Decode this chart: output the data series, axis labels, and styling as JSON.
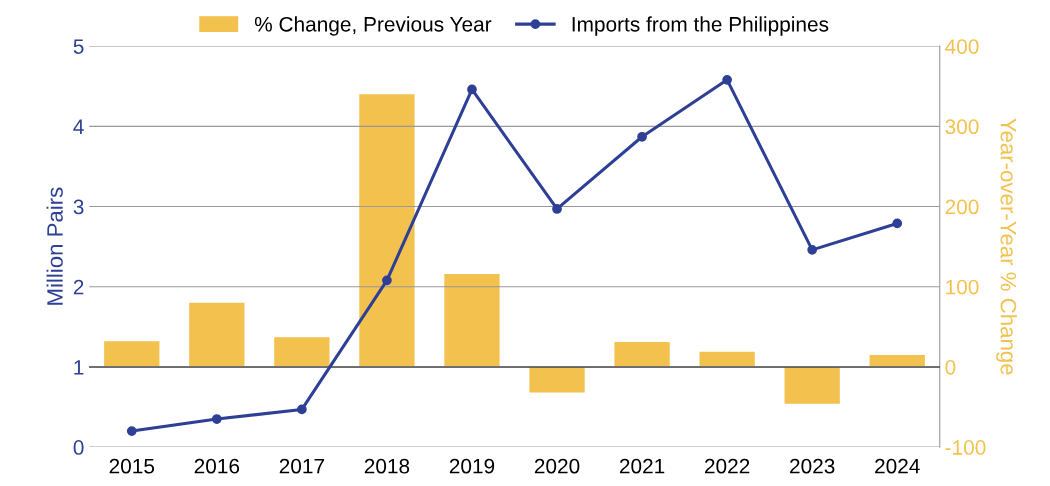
{
  "chart_data": {
    "type": "bar",
    "categories": [
      "2015",
      "2016",
      "2017",
      "2018",
      "2019",
      "2020",
      "2021",
      "2022",
      "2023",
      "2024"
    ],
    "series": [
      {
        "name": "% Change, Previous Year",
        "axis": "y2",
        "color": "#f2c14e",
        "values": [
          32,
          80,
          37,
          340,
          116,
          -32,
          31,
          19,
          -46,
          15
        ]
      },
      {
        "name": "Imports from the Philippines",
        "type": "line",
        "axis": "y",
        "color": "#2e3f96",
        "marker": "circle",
        "values": [
          0.2,
          0.35,
          0.47,
          2.08,
          4.46,
          2.97,
          3.87,
          4.58,
          2.46,
          2.79
        ]
      }
    ],
    "ylabel": "Million Pairs",
    "y2label": "Year-over-Year % Change",
    "ylim": [
      0,
      5
    ],
    "yticks": [
      0,
      1,
      2,
      3,
      4,
      5
    ],
    "y2lim": [
      -100,
      400
    ],
    "y2ticks": [
      -100,
      0,
      100,
      200,
      300,
      400
    ],
    "ref_lines": [
      {
        "axis": "y2",
        "value": 0,
        "color": "#000000"
      }
    ],
    "grid": "y",
    "legend": "top"
  }
}
